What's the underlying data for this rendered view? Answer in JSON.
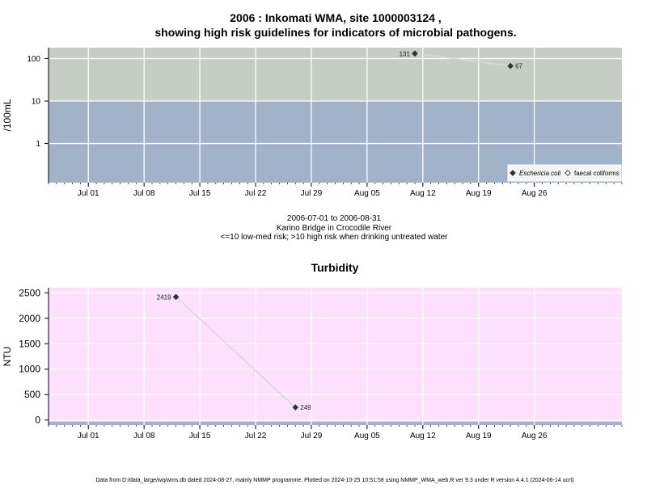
{
  "title_line1": "2006 : Inkomati WMA, site 1000003124 ,",
  "title_line2": "showing high risk guidelines for indicators of microbial pathogens.",
  "subtitle_lines": [
    "2006-07-01 to 2006-08-31",
    "Karino Bridge in Crocodile River",
    "<=10 low-med risk; >10 high risk when drinking untreated water"
  ],
  "footer": "Data from D:/data_large/wq/wms.db dated 2024-08-27, mainly NMMP programme. Plotted on 2024-10-25 10:51:58 using NMMP_WMA_web.R ver 9.3 under R version 4.4.1 (2024-06-14 ucrt)",
  "colors": {
    "high_risk_band": "#c4cec3",
    "low_risk_band": "#a2b2c9",
    "turbidity_band": "#fde0fd",
    "turbidity_floor_band": "#a2b2c9",
    "grid": "#ffffff",
    "series_line": "#d9d9d9",
    "marker": "#333333"
  },
  "chart_data": [
    {
      "type": "line",
      "ylabel": "/100mL",
      "y_scale": "log",
      "ylim": [
        0.12,
        180
      ],
      "xlim": [
        "2006-06-26",
        "2006-09-06"
      ],
      "y_ticks": [
        1,
        10,
        100
      ],
      "y_tick_labels": [
        "1",
        "10",
        "100"
      ],
      "x_ticks": [
        "2006-07-01",
        "2006-07-08",
        "2006-07-15",
        "2006-07-22",
        "2006-07-29",
        "2006-08-05",
        "2006-08-12",
        "2006-08-19",
        "2006-08-26"
      ],
      "x_tick_labels": [
        "Jul 01",
        "Jul 08",
        "Jul 15",
        "Jul 22",
        "Jul 29",
        "Aug 05",
        "Aug 12",
        "Aug 19",
        "Aug 26"
      ],
      "threshold": 10,
      "grid": true,
      "legend_position": "bottom-right",
      "series": [
        {
          "name": "Eschericia coli",
          "marker": "filled-diamond",
          "points": [
            {
              "x": "2006-08-11",
              "y": 131,
              "label": "131"
            },
            {
              "x": "2006-08-23",
              "y": 67,
              "label": "67"
            }
          ]
        },
        {
          "name": "faecal coliforms",
          "marker": "open-diamond",
          "points": []
        }
      ]
    },
    {
      "type": "line",
      "title": "Turbidity",
      "ylabel": "NTU",
      "y_scale": "linear",
      "ylim": [
        -100,
        2600
      ],
      "xlim": [
        "2006-06-26",
        "2006-09-06"
      ],
      "y_ticks": [
        0,
        500,
        1000,
        1500,
        2000,
        2500
      ],
      "y_tick_labels": [
        "0",
        "500",
        "1000",
        "1500",
        "2000",
        "2500"
      ],
      "x_ticks": [
        "2006-07-01",
        "2006-07-08",
        "2006-07-15",
        "2006-07-22",
        "2006-07-29",
        "2006-08-05",
        "2006-08-12",
        "2006-08-19",
        "2006-08-26"
      ],
      "x_tick_labels": [
        "Jul 01",
        "Jul 08",
        "Jul 15",
        "Jul 22",
        "Jul 29",
        "Aug 05",
        "Aug 12",
        "Aug 19",
        "Aug 26"
      ],
      "grid": true,
      "series": [
        {
          "marker": "filled-diamond",
          "points": [
            {
              "x": "2006-07-12",
              "y": 2419,
              "label": "2419"
            },
            {
              "x": "2006-07-27",
              "y": 249,
              "label": "249"
            }
          ]
        }
      ]
    }
  ]
}
